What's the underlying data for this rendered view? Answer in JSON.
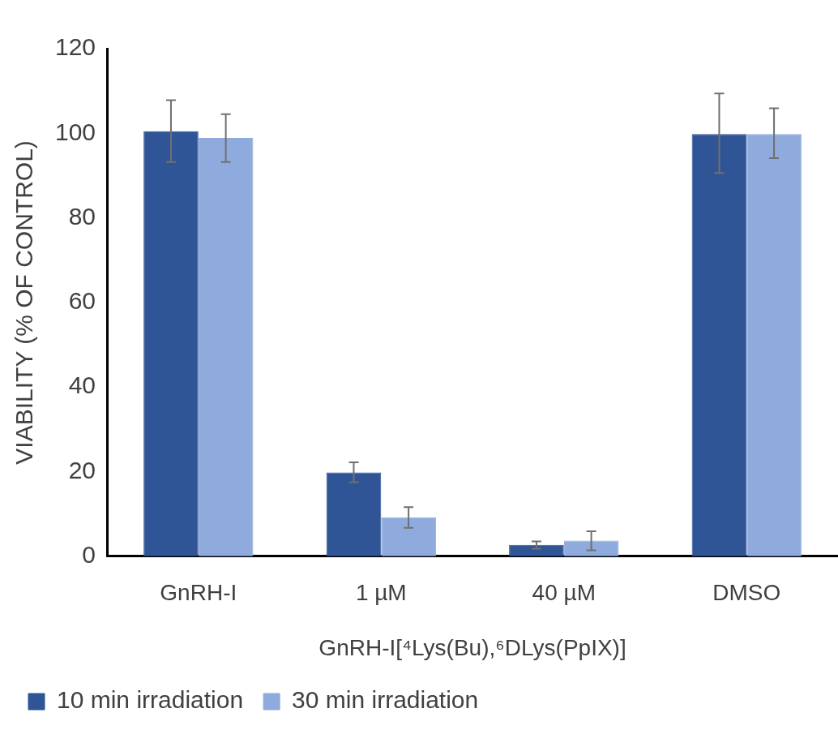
{
  "chart_data": {
    "type": "bar",
    "xlabel": "GnRH-I[⁴Lys(Bu),⁶DLys(PpIX)]",
    "ylabel": "VIABILITY (% OF CONTROL)",
    "categories": [
      "GnRH-I",
      "1 µM",
      "40 µM",
      "DMSO"
    ],
    "series": [
      {
        "name": "10 min irradiation",
        "color": "#2f5597",
        "values": [
          100.5,
          19.8,
          2.7,
          99.8
        ],
        "errors": [
          [
            93.2,
            107.8
          ],
          [
            17.5,
            22.2
          ],
          [
            1.8,
            3.5
          ],
          [
            90.6,
            109.4
          ]
        ]
      },
      {
        "name": "30 min irradiation",
        "color": "#8faadc",
        "values": [
          98.9,
          9.2,
          3.7,
          99.8
        ],
        "errors": [
          [
            93.2,
            104.5
          ],
          [
            6.7,
            11.6
          ],
          [
            1.4,
            5.9
          ],
          [
            94.1,
            105.9
          ]
        ]
      }
    ],
    "ylim": [
      0,
      120
    ],
    "yticks": [
      0,
      20,
      40,
      60,
      80,
      100,
      120
    ],
    "grid": false,
    "legend": "bottom"
  }
}
